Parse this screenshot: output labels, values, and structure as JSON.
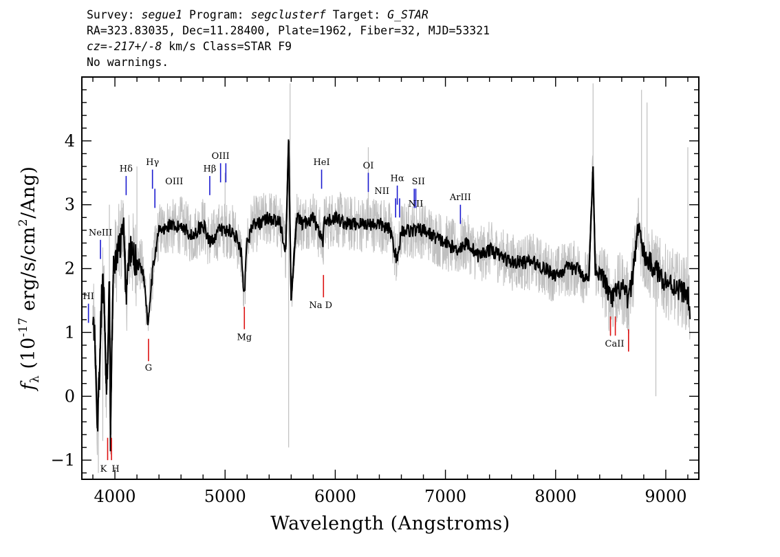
{
  "header": {
    "line1": {
      "survey_label": "Survey:",
      "survey": "segue1",
      "program_label": "Program:",
      "program": "segclusterf",
      "target_label": "Target:",
      "target": "G_STAR"
    },
    "line2": "RA=323.83035, Dec=11.28400, Plate=1962, Fiber=32, MJD=53321",
    "line3": {
      "cz_label": "cz=",
      "cz_value": "-217+/-8",
      "cz_unit": "km/s",
      "class_text": "Class=STAR F9"
    },
    "line4": "No warnings."
  },
  "chart_data": {
    "type": "line",
    "xlabel": "Wavelength (Angstroms)",
    "ylabel": "f_λ (10^-17 erg/s/cm^2/Ang)",
    "xlim": [
      3700,
      9300
    ],
    "ylim": [
      -1.3,
      5.0
    ],
    "x_ticks": [
      4000,
      5000,
      6000,
      7000,
      8000,
      9000
    ],
    "y_ticks": [
      -1,
      0,
      1,
      2,
      3,
      4
    ],
    "grid": false,
    "series": [
      {
        "role": "smoothed",
        "color": "#000000",
        "x": [
          3800,
          3820,
          3840,
          3860,
          3880,
          3900,
          3920,
          3935,
          3950,
          3960,
          3970,
          3985,
          4000,
          4020,
          4050,
          4080,
          4102,
          4130,
          4160,
          4200,
          4250,
          4280,
          4300,
          4320,
          4340,
          4360,
          4400,
          4450,
          4500,
          4550,
          4600,
          4700,
          4800,
          4861,
          4900,
          4950,
          5000,
          5050,
          5100,
          5150,
          5167,
          5175,
          5183,
          5200,
          5250,
          5300,
          5400,
          5500,
          5550,
          5577,
          5600,
          5650,
          5700,
          5800,
          5890,
          5900,
          6000,
          6100,
          6200,
          6300,
          6400,
          6500,
          6563,
          6600,
          6700,
          6800,
          6900,
          7000,
          7100,
          7200,
          7300,
          7400,
          7500,
          7600,
          7700,
          7800,
          7900,
          8000,
          8100,
          8200,
          8300,
          8340,
          8360,
          8400,
          8450,
          8498,
          8542,
          8600,
          8662,
          8700,
          8750,
          8800,
          8900,
          9000,
          9100,
          9200,
          9220
        ],
        "y": [
          1.2,
          0.8,
          -0.5,
          0.3,
          1.6,
          1.7,
          0.2,
          0.5,
          1.8,
          -0.6,
          0.6,
          1.9,
          2.1,
          2.2,
          2.4,
          2.6,
          1.6,
          2.3,
          2.2,
          2.1,
          2.0,
          1.6,
          1.1,
          1.6,
          1.9,
          2.2,
          2.6,
          2.6,
          2.7,
          2.6,
          2.7,
          2.5,
          2.7,
          2.4,
          2.5,
          2.6,
          2.6,
          2.6,
          2.5,
          2.2,
          1.6,
          1.5,
          1.9,
          2.4,
          2.7,
          2.7,
          2.8,
          2.7,
          2.3,
          4.0,
          1.5,
          2.8,
          2.7,
          2.8,
          2.4,
          2.7,
          2.8,
          2.7,
          2.7,
          2.7,
          2.7,
          2.6,
          2.1,
          2.6,
          2.6,
          2.6,
          2.5,
          2.4,
          2.3,
          2.4,
          2.2,
          2.3,
          2.2,
          2.1,
          2.1,
          2.1,
          2.0,
          1.9,
          2.0,
          2.0,
          1.8,
          3.6,
          2.0,
          1.9,
          1.8,
          1.5,
          1.6,
          1.7,
          1.5,
          1.9,
          2.7,
          2.2,
          2.0,
          1.8,
          1.7,
          1.6,
          1.3
        ]
      },
      {
        "role": "raw",
        "color": "#bfbfbf",
        "noise_amplitude": 0.45,
        "spikes": [
          {
            "x": 3850,
            "y": -1.2
          },
          {
            "x": 3890,
            "y": -0.7
          },
          {
            "x": 3950,
            "y": 3.0
          },
          {
            "x": 4200,
            "y": 3.6
          },
          {
            "x": 5000,
            "y": 3.5
          },
          {
            "x": 5577,
            "y": -0.8
          },
          {
            "x": 5590,
            "y": 4.9
          },
          {
            "x": 6300,
            "y": 3.9
          },
          {
            "x": 8340,
            "y": 4.9
          },
          {
            "x": 8780,
            "y": 4.8
          },
          {
            "x": 8830,
            "y": 4.6
          },
          {
            "x": 8910,
            "y": 0.0
          },
          {
            "x": 9200,
            "y": 3.9
          }
        ]
      }
    ],
    "line_markers": [
      {
        "label": "HI",
        "x": 3760,
        "y1": 1.15,
        "y2": 1.45,
        "color": "#1a1ad0",
        "label_y": 1.52
      },
      {
        "label": "NeIII",
        "x": 3869,
        "y1": 2.15,
        "y2": 2.45,
        "color": "#1a1ad0",
        "label_y": 2.52
      },
      {
        "label": "Hδ",
        "x": 4102,
        "y1": 3.15,
        "y2": 3.45,
        "color": "#1a1ad0",
        "label_y": 3.52
      },
      {
        "label": "Hγ",
        "x": 4341,
        "y1": 3.25,
        "y2": 3.55,
        "color": "#1a1ad0",
        "label_y": 3.62
      },
      {
        "label": "OIII",
        "x": 4363,
        "y1": 2.95,
        "y2": 3.25,
        "color": "#1a1ad0",
        "label_y": 3.32,
        "label_dx": 28
      },
      {
        "label": "Hβ",
        "x": 4861,
        "y1": 3.15,
        "y2": 3.45,
        "color": "#1a1ad0",
        "label_y": 3.52
      },
      {
        "label": "OIII",
        "x": 4959,
        "y1": 3.35,
        "y2": 3.65,
        "color": "#1a1ad0",
        "label_y": 3.72,
        "label_dx": 0
      },
      {
        "label": "",
        "x": 5007,
        "y1": 3.35,
        "y2": 3.65,
        "color": "#1a1ad0"
      },
      {
        "label": "HeI",
        "x": 5876,
        "y1": 3.25,
        "y2": 3.55,
        "color": "#1a1ad0",
        "label_y": 3.62
      },
      {
        "label": "OI",
        "x": 6300,
        "y1": 3.2,
        "y2": 3.5,
        "color": "#1a1ad0",
        "label_y": 3.57
      },
      {
        "label": "NII",
        "x": 6548,
        "y1": 2.8,
        "y2": 3.1,
        "color": "#1a1ad0",
        "label_y": 3.17,
        "label_dx": -20
      },
      {
        "label": "Hα",
        "x": 6563,
        "y1": 3.0,
        "y2": 3.3,
        "color": "#1a1ad0",
        "label_y": 3.37
      },
      {
        "label": "",
        "x": 6584,
        "y1": 2.8,
        "y2": 3.1,
        "color": "#1a1ad0"
      },
      {
        "label": "SII",
        "x": 6717,
        "y1": 2.95,
        "y2": 3.25,
        "color": "#1a1ad0",
        "label_y": 3.32,
        "label_dx": 6
      },
      {
        "label": "NII",
        "x": 6731,
        "y1": 2.95,
        "y2": 3.25,
        "color": "#1a1ad0",
        "label_y": 3.1,
        "label_dx": 0,
        "label_dy": 12
      },
      {
        "label": "ArIII",
        "x": 7136,
        "y1": 2.7,
        "y2": 3.0,
        "color": "#1a1ad0",
        "label_y": 3.07
      },
      {
        "label": "K",
        "x": 3934,
        "y1": -1.0,
        "y2": -0.65,
        "color": "#dd1111",
        "label_y": -1.18,
        "label_dx": -6
      },
      {
        "label": "H",
        "x": 3969,
        "y1": -1.0,
        "y2": -0.65,
        "color": "#dd1111",
        "label_y": -1.18,
        "label_dx": 6
      },
      {
        "label": "G",
        "x": 4305,
        "y1": 0.55,
        "y2": 0.9,
        "color": "#dd1111",
        "label_y": 0.4
      },
      {
        "label": "Mg",
        "x": 5175,
        "y1": 1.05,
        "y2": 1.4,
        "color": "#dd1111",
        "label_y": 0.88
      },
      {
        "label": "Na D",
        "x": 5893,
        "y1": 1.55,
        "y2": 1.9,
        "color": "#dd1111",
        "label_y": 1.38,
        "label_dx": -4
      },
      {
        "label": "CaII",
        "x": 8498,
        "y1": 0.95,
        "y2": 1.25,
        "color": "#dd1111",
        "label_y": 0.78,
        "label_dx": 6
      },
      {
        "label": "",
        "x": 8542,
        "y1": 0.95,
        "y2": 1.25,
        "color": "#dd1111"
      },
      {
        "label": "",
        "x": 8662,
        "y1": 0.7,
        "y2": 1.05,
        "color": "#dd1111"
      }
    ]
  }
}
